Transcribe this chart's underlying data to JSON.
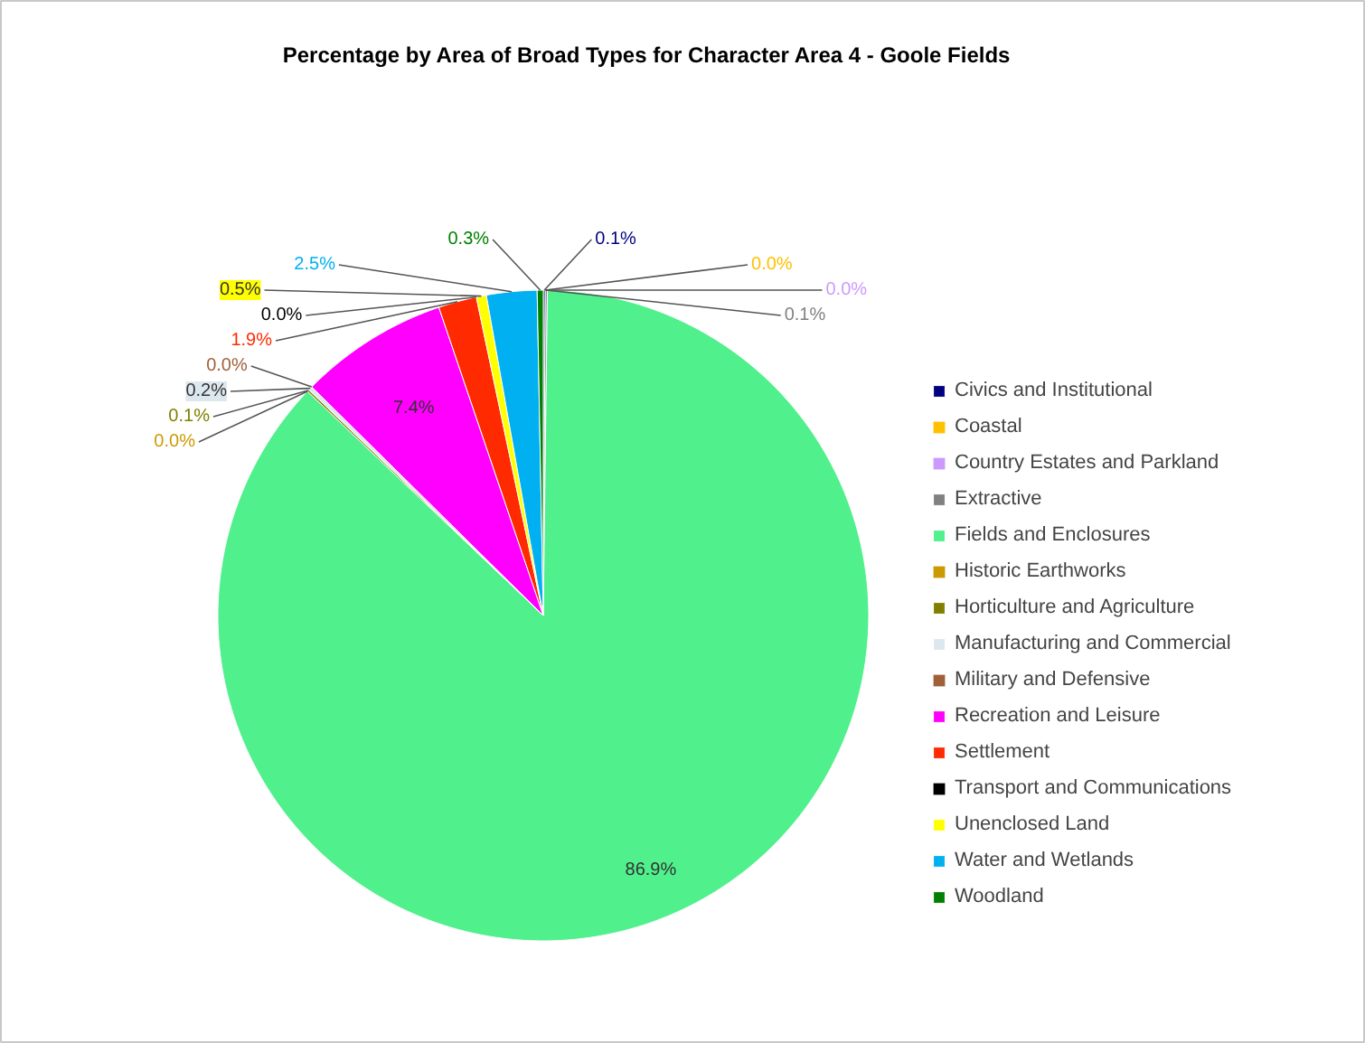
{
  "chart_data": {
    "type": "pie",
    "title": "Percentage by Area of Broad Types for Character Area 4 - Goole Fields",
    "categories": [
      "Civics and Institutional",
      "Coastal",
      "Country Estates and Parkland",
      "Extractive",
      "Fields and Enclosures",
      "Historic Earthworks",
      "Horticulture and Agriculture",
      "Manufacturing and Commercial",
      "Military and Defensive",
      "Recreation and Leisure",
      "Settlement",
      "Transport and Communications",
      "Unenclosed Land",
      "Water and Wetlands",
      "Woodland"
    ],
    "values": [
      0.1,
      0.0,
      0.0,
      0.1,
      86.9,
      0.0,
      0.1,
      0.2,
      0.0,
      7.4,
      1.9,
      0.0,
      0.5,
      2.5,
      0.3
    ],
    "colors": [
      "#000080",
      "#ffc000",
      "#cc99ff",
      "#808080",
      "#50f08c",
      "#cc9900",
      "#808000",
      "#dde8ee",
      "#a0603a",
      "#ff00ff",
      "#ff2a00",
      "#000000",
      "#ffff00",
      "#00b0f0",
      "#008000"
    ],
    "value_labels": [
      "0.1%",
      "0.0%",
      "0.0%",
      "0.1%",
      "86.9%",
      "0.0%",
      "0.1%",
      "0.2%",
      "0.0%",
      "7.4%",
      "1.9%",
      "0.0%",
      "0.5%",
      "2.5%",
      "0.3%"
    ],
    "legend": "right"
  }
}
